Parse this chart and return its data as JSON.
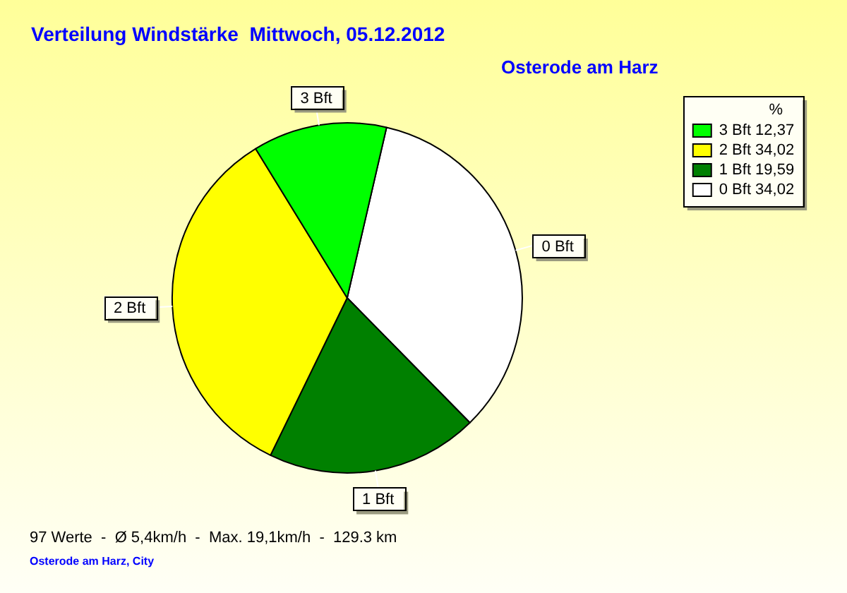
{
  "chart_data": {
    "type": "pie",
    "title": "Verteilung Windstärke  Mittwoch, 05.12.2012",
    "subtitle": "Osterode am Harz",
    "legend_title": "%",
    "categories": [
      "0 Bft",
      "1 Bft",
      "2 Bft",
      "3 Bft"
    ],
    "values": [
      34.02,
      19.59,
      34.02,
      12.37
    ],
    "value_labels": [
      "34,02",
      "19,59",
      "34,02",
      "12,37"
    ],
    "colors": [
      "#ffffff",
      "#008000",
      "#ffff00",
      "#00ff00"
    ],
    "legend": "top right",
    "annotations": [
      "97 Werte  -  Ø 5,4km/h  -  Max. 19,1km/h  -  129.3 km",
      "Osterode am Harz, City"
    ]
  }
}
